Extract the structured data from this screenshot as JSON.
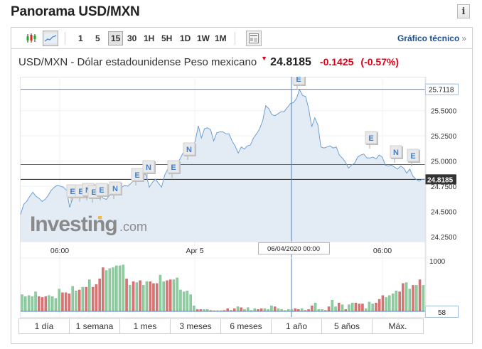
{
  "header": {
    "title": "Panorama USD/MXN",
    "info_icon": "info-icon",
    "info_glyph": "i"
  },
  "toolbar": {
    "chart_types": [
      {
        "name": "candlestick-icon",
        "active": false
      },
      {
        "name": "line-chart-icon",
        "active": true
      }
    ],
    "timeframes": [
      {
        "label": "1",
        "active": false
      },
      {
        "label": "5",
        "active": false
      },
      {
        "label": "15",
        "active": true
      },
      {
        "label": "30",
        "active": false
      },
      {
        "label": "1H",
        "active": false
      },
      {
        "label": "5H",
        "active": false
      },
      {
        "label": "1D",
        "active": false
      },
      {
        "label": "1W",
        "active": false
      },
      {
        "label": "1M",
        "active": false
      }
    ],
    "layout_icon": "table-layout-icon",
    "technical_link": "Gráfico técnico",
    "technical_chevron": "»"
  },
  "quote": {
    "name": "USD/MXN - Dólar estadounidense Peso mexicano",
    "direction_glyph": "▼",
    "last": "24.8185",
    "change": "-0.1425",
    "change_pct": "(-0.57%)"
  },
  "colors": {
    "line": "#6f9fd0",
    "area": "#e3ecf5",
    "up_volume": "#8fcca0",
    "down_volume": "#d97474",
    "ref_red": "#c0393b",
    "ref_black": "#222222",
    "crosshair": "#4f86c0",
    "link": "#1c4f8e",
    "negative": "#e0001a"
  },
  "watermark": {
    "brand": "Investing",
    "suffix": ".com"
  },
  "crosshair": {
    "date_label": "06/04/2020 00:00",
    "price_label": "25.7118"
  },
  "last_price_label": "24.8185",
  "volume_label": "58",
  "range_buttons": [
    "1 día",
    "1 semana",
    "1 mes",
    "3 meses",
    "6 meses",
    "1 año",
    "5 años",
    "Máx."
  ],
  "chart_data": {
    "type": "area",
    "title": "USD/MXN - Dólar estadounidense Peso mexicano",
    "interval": "15",
    "x_ticks": [
      "06:00",
      "Apr 5",
      "06/04/2020 00:00",
      "06:00"
    ],
    "y_ticks": [
      25.5,
      25.25,
      25.0,
      24.75,
      24.5,
      24.25
    ],
    "y_tick_labels": [
      "25.5000",
      "25.2500",
      "25.0000",
      "24.7500",
      "24.5000",
      "24.2500"
    ],
    "ylim": [
      24.2,
      25.78
    ],
    "reference_lines": {
      "high_crosshair": 25.7118,
      "red_line": 24.965,
      "last": 24.8185
    },
    "grid": true,
    "series": [
      {
        "name": "USD/MXN",
        "values": [
          24.47,
          24.57,
          24.6,
          24.65,
          24.69,
          24.65,
          24.63,
          24.6,
          24.62,
          24.66,
          24.71,
          24.74,
          24.76,
          24.75,
          24.74,
          24.71,
          24.54,
          24.63,
          24.68,
          24.7,
          24.67,
          24.72,
          24.7,
          24.68,
          24.66,
          24.64,
          24.66,
          24.63,
          24.62,
          24.66,
          24.68,
          24.7,
          24.73,
          24.74,
          24.76,
          24.75,
          24.78,
          24.81,
          24.83,
          24.86,
          24.88,
          24.86,
          24.74,
          24.79,
          24.82,
          24.78,
          24.74,
          24.86,
          24.92,
          24.93,
          24.95,
          24.97,
          25.02,
          25.08,
          25.1,
          25.1,
          25.12,
          25.2,
          25.35,
          25.23,
          25.32,
          25.33,
          25.31,
          25.2,
          25.28,
          25.29,
          25.29,
          25.27,
          25.27,
          25.2,
          25.15,
          25.08,
          25.14,
          25.12,
          25.15,
          25.16,
          25.23,
          25.27,
          25.32,
          25.4,
          25.55,
          25.52,
          25.46,
          25.45,
          25.47,
          25.49,
          25.49,
          25.53,
          25.57,
          25.58,
          25.62,
          25.71,
          25.65,
          25.64,
          25.52,
          25.34,
          25.43,
          25.36,
          25.14,
          25.13,
          25.14,
          25.15,
          25.13,
          25.14,
          25.06,
          25.03,
          24.99,
          24.93,
          24.96,
          24.98,
          25.04,
          25.06,
          25.07,
          25.03,
          25.03,
          25.04,
          25.02,
          25.06,
          25.04,
          24.96,
          24.95,
          24.96,
          24.94,
          24.92,
          24.95,
          24.93,
          24.88,
          24.92,
          24.85,
          24.82,
          24.8,
          24.82,
          24.82
        ]
      }
    ],
    "volume": {
      "ylim": [
        0,
        1000
      ],
      "tick_labels": [
        "1000"
      ],
      "last": 58
    },
    "event_markers": [
      "E",
      "E",
      "N",
      "E",
      "E",
      "N",
      "E",
      "N",
      "E",
      "N",
      "E",
      "E",
      "N",
      "E"
    ]
  }
}
